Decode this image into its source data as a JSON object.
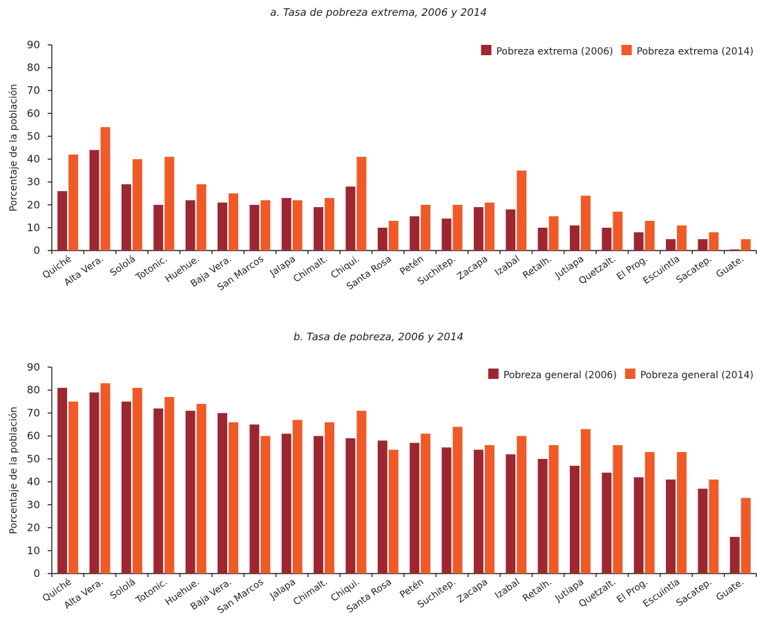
{
  "colors": {
    "series_2006": "#9c2731",
    "series_2014": "#f05a28",
    "axis": "#222222"
  },
  "chart_data": [
    {
      "type": "bar",
      "title": "a. Tasa de pobreza extrema, 2006 y 2014",
      "xlabel": "",
      "ylabel": "Porcentaje de la población",
      "ylim": [
        0,
        90
      ],
      "yticks": [
        0,
        10,
        20,
        30,
        40,
        50,
        60,
        70,
        80,
        90
      ],
      "grid": false,
      "legend_position": "top-right",
      "categories": [
        "Quiché",
        "Alta Vera.",
        "Sololá",
        "Totonic.",
        "Huehue.",
        "Baja Vera.",
        "San Marcos",
        "Jalapa",
        "Chimalt.",
        "Chiqui.",
        "Santa Rosa",
        "Petén",
        "Suchitep.",
        "Zacapa",
        "Izabal",
        "Retalh.",
        "Jutiapa",
        "Quetzalt.",
        "El Prog.",
        "Escuintla",
        "Sacatep.",
        "Guate."
      ],
      "series": [
        {
          "name": "Pobreza extrema (2006)",
          "values": [
            26,
            44,
            29,
            20,
            22,
            21,
            20,
            23,
            19,
            28,
            10,
            15,
            14,
            19,
            18,
            10,
            11,
            10,
            8,
            5,
            5,
            0.5
          ]
        },
        {
          "name": "Pobreza extrema (2014)",
          "values": [
            42,
            54,
            40,
            41,
            29,
            25,
            22,
            22,
            23,
            41,
            13,
            20,
            20,
            21,
            35,
            15,
            24,
            17,
            13,
            11,
            8,
            5
          ]
        }
      ]
    },
    {
      "type": "bar",
      "title": "b. Tasa de pobreza, 2006 y 2014",
      "xlabel": "",
      "ylabel": "Porcentaje de la población",
      "ylim": [
        0,
        90
      ],
      "yticks": [
        0,
        10,
        20,
        30,
        40,
        50,
        60,
        70,
        80,
        90
      ],
      "grid": false,
      "legend_position": "top-right",
      "categories": [
        "Quiché",
        "Alta Vera.",
        "Sololá",
        "Totonic.",
        "Huehue.",
        "Baja Vera.",
        "San Marcos",
        "Jalapa",
        "Chimalt.",
        "Chiqui.",
        "Santa Rosa",
        "Petén",
        "Suchitep.",
        "Zacapa",
        "Izabal",
        "Retalh.",
        "Jutiapa",
        "Quetzalt.",
        "El Prog.",
        "Escuintla",
        "Sacatep.",
        "Guate."
      ],
      "series": [
        {
          "name": "Pobreza general (2006)",
          "values": [
            81,
            79,
            75,
            72,
            71,
            70,
            65,
            61,
            60,
            59,
            58,
            57,
            55,
            54,
            52,
            50,
            47,
            44,
            42,
            41,
            37,
            16
          ]
        },
        {
          "name": "Pobreza general (2014)",
          "values": [
            75,
            83,
            81,
            77,
            74,
            66,
            60,
            67,
            66,
            71,
            54,
            61,
            64,
            56,
            60,
            56,
            63,
            56,
            53,
            53,
            41,
            33
          ]
        }
      ]
    }
  ]
}
